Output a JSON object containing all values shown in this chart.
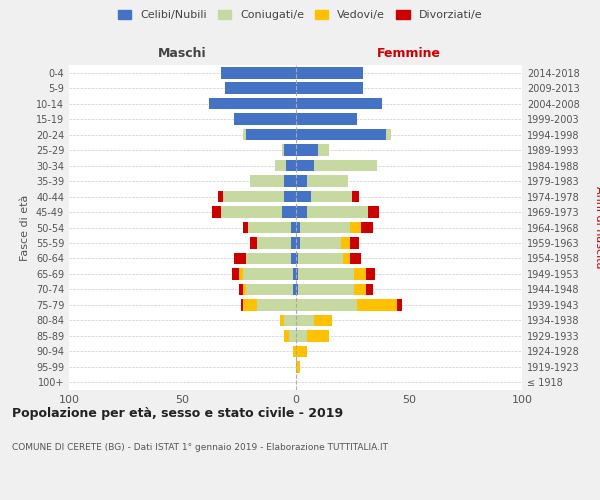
{
  "age_groups": [
    "100+",
    "95-99",
    "90-94",
    "85-89",
    "80-84",
    "75-79",
    "70-74",
    "65-69",
    "60-64",
    "55-59",
    "50-54",
    "45-49",
    "40-44",
    "35-39",
    "30-34",
    "25-29",
    "20-24",
    "15-19",
    "10-14",
    "5-9",
    "0-4"
  ],
  "birth_years": [
    "≤ 1918",
    "1919-1923",
    "1924-1928",
    "1929-1933",
    "1934-1938",
    "1939-1943",
    "1944-1948",
    "1949-1953",
    "1954-1958",
    "1959-1963",
    "1964-1968",
    "1969-1973",
    "1974-1978",
    "1979-1983",
    "1984-1988",
    "1989-1993",
    "1994-1998",
    "1999-2003",
    "2004-2008",
    "2009-2013",
    "2014-2018"
  ],
  "colors": {
    "celibi": "#4472c4",
    "coniugati": "#c5d9a0",
    "vedovi": "#ffc000",
    "divorziati": "#cc0000"
  },
  "male_celibi": [
    0,
    0,
    0,
    0,
    0,
    0,
    1,
    1,
    2,
    2,
    2,
    6,
    5,
    5,
    4,
    5,
    22,
    27,
    38,
    31,
    33
  ],
  "male_coniugati": [
    0,
    0,
    0,
    3,
    5,
    17,
    21,
    22,
    20,
    15,
    19,
    27,
    27,
    15,
    5,
    1,
    1,
    0,
    0,
    0,
    0
  ],
  "male_vedovi": [
    0,
    0,
    1,
    2,
    2,
    6,
    1,
    2,
    0,
    0,
    0,
    0,
    0,
    0,
    0,
    0,
    0,
    0,
    0,
    0,
    0
  ],
  "male_divorziati": [
    0,
    0,
    0,
    0,
    0,
    1,
    2,
    3,
    5,
    3,
    2,
    4,
    2,
    0,
    0,
    0,
    0,
    0,
    0,
    0,
    0
  ],
  "female_celibi": [
    0,
    0,
    0,
    0,
    0,
    0,
    1,
    1,
    1,
    2,
    2,
    5,
    7,
    5,
    8,
    10,
    40,
    27,
    38,
    30,
    30
  ],
  "female_coniugati": [
    0,
    0,
    0,
    5,
    8,
    27,
    25,
    25,
    20,
    18,
    22,
    27,
    18,
    18,
    28,
    5,
    2,
    0,
    0,
    0,
    0
  ],
  "female_vedovi": [
    0,
    2,
    5,
    10,
    8,
    18,
    5,
    5,
    3,
    4,
    5,
    0,
    0,
    0,
    0,
    0,
    0,
    0,
    0,
    0,
    0
  ],
  "female_divorziati": [
    0,
    0,
    0,
    0,
    0,
    2,
    3,
    4,
    5,
    4,
    5,
    5,
    3,
    0,
    0,
    0,
    0,
    0,
    0,
    0,
    0
  ],
  "title": "Popolazione per età, sesso e stato civile - 2019",
  "subtitle": "COMUNE DI CERETE (BG) - Dati ISTAT 1° gennaio 2019 - Elaborazione TUTTITALIA.IT",
  "xlabel_left": "Maschi",
  "xlabel_right": "Femmine",
  "ylabel_left": "Fasce di età",
  "ylabel_right": "Anni di nascita",
  "legend_labels": [
    "Celibi/Nubili",
    "Coniugati/e",
    "Vedovi/e",
    "Divorziati/e"
  ],
  "xlim": 100,
  "bg_color": "#f0f0f0",
  "plot_bg": "#ffffff"
}
